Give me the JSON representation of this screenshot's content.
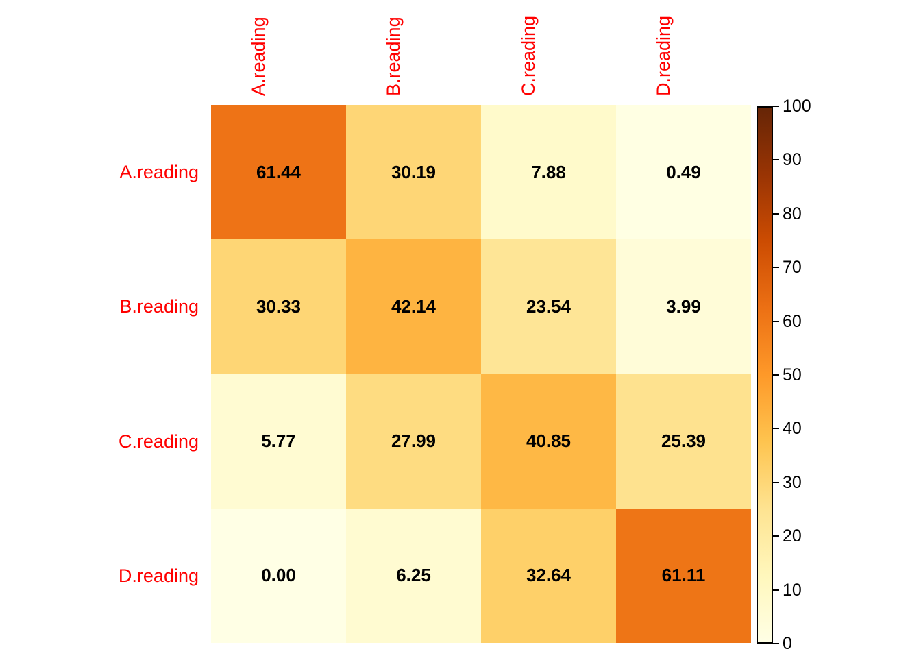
{
  "chart_data": {
    "type": "heatmap",
    "rows": [
      "A.reading",
      "B.reading",
      "C.reading",
      "D.reading"
    ],
    "columns": [
      "A.reading",
      "B.reading",
      "C.reading",
      "D.reading"
    ],
    "values": [
      [
        61.44,
        30.19,
        7.88,
        0.49
      ],
      [
        30.33,
        42.14,
        23.54,
        3.99
      ],
      [
        5.77,
        27.99,
        40.85,
        25.39
      ],
      [
        0.0,
        6.25,
        32.64,
        61.11
      ]
    ],
    "cell_labels": [
      [
        "61.44",
        "30.19",
        "7.88",
        "0.49"
      ],
      [
        "30.33",
        "42.14",
        "23.54",
        "3.99"
      ],
      [
        "5.77",
        "27.99",
        "40.85",
        "25.39"
      ],
      [
        "0.00",
        "6.25",
        "32.64",
        "61.11"
      ]
    ],
    "colorbar": {
      "min": 0,
      "max": 100,
      "ticks": [
        0,
        10,
        20,
        30,
        40,
        50,
        60,
        70,
        80,
        90,
        100
      ],
      "position": "right",
      "orientation": "vertical"
    },
    "colors": {
      "axis_label_color": "#ff0000",
      "cell_value_color": "#000000",
      "background": "#ffffff",
      "colorbar_border": "#000000",
      "colormap": "YlOrBr",
      "colormap_anchors": [
        "#ffffe5",
        "#fff7bc",
        "#fee391",
        "#fec44f",
        "#fe9929",
        "#ec7014",
        "#cc4c02",
        "#993404",
        "#662506"
      ]
    },
    "grid_lines": "off",
    "legend_position": "right"
  }
}
